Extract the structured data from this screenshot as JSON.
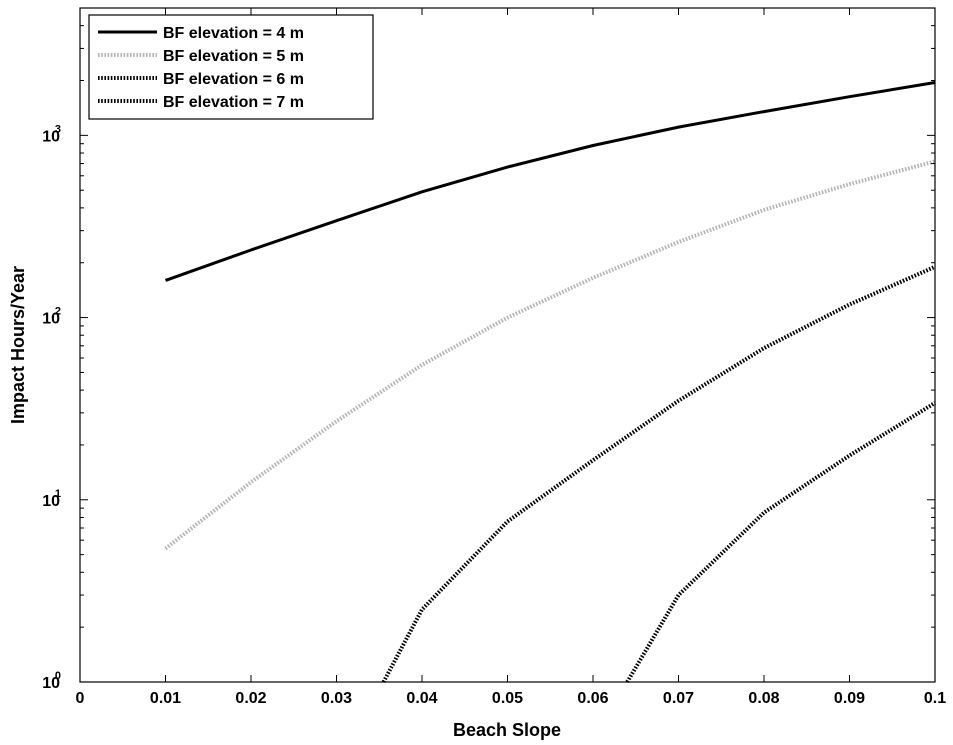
{
  "chart_data": {
    "type": "line",
    "title": "",
    "xlabel": "Beach Slope",
    "ylabel": "Impact Hours/Year",
    "xlim": [
      0,
      0.1
    ],
    "ylim": [
      1,
      5000
    ],
    "yscale": "log",
    "grid": false,
    "legend_position": "top-left",
    "x_ticks": [
      0,
      0.01,
      0.02,
      0.03,
      0.04,
      0.05,
      0.06,
      0.07,
      0.08,
      0.09,
      0.1
    ],
    "x_tick_labels": [
      "0",
      "0.01",
      "0.02",
      "0.03",
      "0.04",
      "0.05",
      "0.06",
      "0.07",
      "0.08",
      "0.09",
      "0.1"
    ],
    "y_ticks": [
      {
        "value": 1,
        "base": "10",
        "exp": "0"
      },
      {
        "value": 10,
        "base": "10",
        "exp": "1"
      },
      {
        "value": 100,
        "base": "10",
        "exp": "2"
      },
      {
        "value": 1000,
        "base": "10",
        "exp": "3"
      }
    ],
    "series": [
      {
        "name": "BF elevation = 4 m",
        "color": "#000000",
        "dash": "solid",
        "x": [
          0.01,
          0.02,
          0.03,
          0.04,
          0.05,
          0.06,
          0.07,
          0.08,
          0.09,
          0.1
        ],
        "y": [
          160,
          235,
          340,
          490,
          670,
          880,
          1110,
          1350,
          1630,
          1950
        ]
      },
      {
        "name": "BF elevation = 5 m",
        "color": "#b4b4b4",
        "dash": "dotted",
        "x": [
          0.01,
          0.02,
          0.03,
          0.04,
          0.05,
          0.06,
          0.07,
          0.08,
          0.09,
          0.1
        ],
        "y": [
          5.4,
          12.5,
          27,
          55,
          100,
          165,
          260,
          390,
          540,
          720
        ]
      },
      {
        "name": "BF elevation = 6 m",
        "color": "#000000",
        "dash": "dotted",
        "x": [
          0.0355,
          0.04,
          0.05,
          0.06,
          0.07,
          0.08,
          0.09,
          0.1
        ],
        "y": [
          1.0,
          2.5,
          7.6,
          16.5,
          35,
          68,
          118,
          190
        ]
      },
      {
        "name": "BF elevation = 7 m",
        "color": "#000000",
        "dash": "dotted",
        "x": [
          0.064,
          0.07,
          0.08,
          0.09,
          0.1
        ],
        "y": [
          1.0,
          3.0,
          8.5,
          17.5,
          34
        ]
      }
    ]
  }
}
